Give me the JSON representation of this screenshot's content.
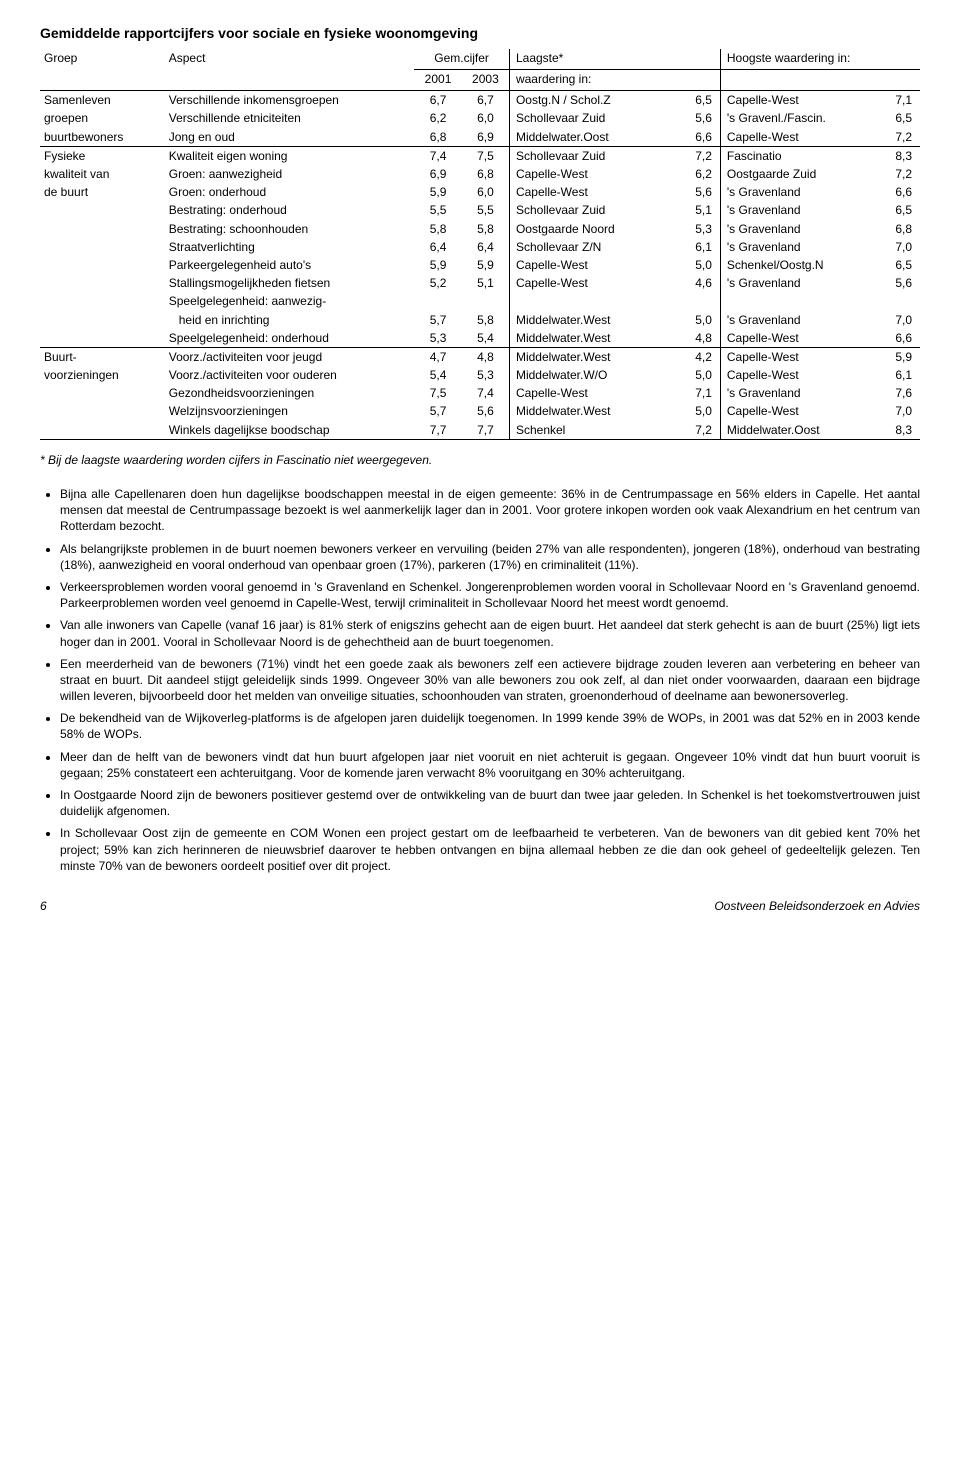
{
  "title": "Gemiddelde rapportcijfers voor sociale en fysieke woonomgeving",
  "header": {
    "groep": "Groep",
    "aspect": "Aspect",
    "gemcijfer": "Gem.cijfer",
    "y01": "2001",
    "y03": "2003",
    "laagste_top": "Laagste*",
    "laagste_bot": "waardering in:",
    "hoogste": "Hoogste waardering in:"
  },
  "sections": [
    {
      "groupLines": [
        "Samenleven",
        "groepen",
        "buurtbewoners"
      ],
      "rows": [
        {
          "aspect": "Verschillende inkomensgroepen",
          "c01": "6,7",
          "c03": "6,7",
          "lplace": "Oostg.N / Schol.Z",
          "lval": "6,5",
          "hplace": "Capelle-West",
          "hval": "7,1"
        },
        {
          "aspect": "Verschillende etniciteiten",
          "c01": "6,2",
          "c03": "6,0",
          "lplace": "Schollevaar Zuid",
          "lval": "5,6",
          "hplace": "'s Gravenl./Fascin.",
          "hval": "6,5"
        },
        {
          "aspect": "Jong en oud",
          "c01": "6,8",
          "c03": "6,9",
          "lplace": "Middelwater.Oost",
          "lval": "6,6",
          "hplace": "Capelle-West",
          "hval": "7,2"
        }
      ]
    },
    {
      "groupLines": [
        "Fysieke",
        "kwaliteit van",
        "de buurt"
      ],
      "rows": [
        {
          "aspect": "Kwaliteit eigen woning",
          "c01": "7,4",
          "c03": "7,5",
          "lplace": "Schollevaar Zuid",
          "lval": "7,2",
          "hplace": "Fascinatio",
          "hval": "8,3"
        },
        {
          "aspect": "Groen: aanwezigheid",
          "c01": "6,9",
          "c03": "6,8",
          "lplace": "Capelle-West",
          "lval": "6,2",
          "hplace": "Oostgaarde Zuid",
          "hval": "7,2"
        },
        {
          "aspect": "Groen: onderhoud",
          "c01": "5,9",
          "c03": "6,0",
          "lplace": "Capelle-West",
          "lval": "5,6",
          "hplace": "'s Gravenland",
          "hval": "6,6"
        },
        {
          "aspect": "Bestrating: onderhoud",
          "c01": "5,5",
          "c03": "5,5",
          "lplace": "Schollevaar Zuid",
          "lval": "5,1",
          "hplace": "'s Gravenland",
          "hval": "6,5"
        },
        {
          "aspect": "Bestrating: schoonhouden",
          "c01": "5,8",
          "c03": "5,8",
          "lplace": "Oostgaarde Noord",
          "lval": "5,3",
          "hplace": "'s Gravenland",
          "hval": "6,8"
        },
        {
          "aspect": "Straatverlichting",
          "c01": "6,4",
          "c03": "6,4",
          "lplace": "Schollevaar Z/N",
          "lval": "6,1",
          "hplace": "'s Gravenland",
          "hval": "7,0"
        },
        {
          "aspect": "Parkeergelegenheid auto's",
          "c01": "5,9",
          "c03": "5,9",
          "lplace": "Capelle-West",
          "lval": "5,0",
          "hplace": "Schenkel/Oostg.N",
          "hval": "6,5"
        },
        {
          "aspect": "Stallingsmogelijkheden fietsen",
          "c01": "5,2",
          "c03": "5,1",
          "lplace": "Capelle-West",
          "lval": "4,6",
          "hplace": "'s Gravenland",
          "hval": "5,6"
        },
        {
          "aspect": "Speelgelegenheid: aanwezig-",
          "c01": "",
          "c03": "",
          "lplace": "",
          "lval": "",
          "hplace": "",
          "hval": ""
        },
        {
          "aspect": "   heid en inrichting",
          "c01": "5,7",
          "c03": "5,8",
          "lplace": "Middelwater.West",
          "lval": "5,0",
          "hplace": "'s Gravenland",
          "hval": "7,0"
        },
        {
          "aspect": "Speelgelegenheid: onderhoud",
          "c01": "5,3",
          "c03": "5,4",
          "lplace": "Middelwater.West",
          "lval": "4,8",
          "hplace": "Capelle-West",
          "hval": "6,6"
        }
      ]
    },
    {
      "groupLines": [
        "Buurt-",
        "voorzieningen"
      ],
      "rows": [
        {
          "aspect": "Voorz./activiteiten voor jeugd",
          "c01": "4,7",
          "c03": "4,8",
          "lplace": "Middelwater.West",
          "lval": "4,2",
          "hplace": "Capelle-West",
          "hval": "5,9"
        },
        {
          "aspect": "Voorz./activiteiten voor ouderen",
          "c01": "5,4",
          "c03": "5,3",
          "lplace": "Middelwater.W/O",
          "lval": "5,0",
          "hplace": "Capelle-West",
          "hval": "6,1"
        },
        {
          "aspect": "Gezondheidsvoorzieningen",
          "c01": "7,5",
          "c03": "7,4",
          "lplace": "Capelle-West",
          "lval": "7,1",
          "hplace": "'s Gravenland",
          "hval": "7,6"
        },
        {
          "aspect": "Welzijnsvoorzieningen",
          "c01": "5,7",
          "c03": "5,6",
          "lplace": "Middelwater.West",
          "lval": "5,0",
          "hplace": "Capelle-West",
          "hval": "7,0"
        },
        {
          "aspect": "Winkels dagelijkse boodschap",
          "c01": "7,7",
          "c03": "7,7",
          "lplace": "Schenkel",
          "lval": "7,2",
          "hplace": "Middelwater.Oost",
          "hval": "8,3"
        }
      ]
    }
  ],
  "footnote": "* Bij de laagste waardering worden cijfers in Fascinatio niet weergegeven.",
  "bullets": [
    "Bijna alle Capellenaren doen hun dagelijkse boodschappen meestal in de eigen gemeente: 36% in de Centrumpassage en 56% elders in Capelle. Het aantal mensen dat meestal de Centrumpassage bezoekt is wel aanmerkelijk lager dan in 2001. Voor grotere inkopen worden ook vaak Alexandrium en het centrum van Rotterdam bezocht.",
    "Als belangrijkste problemen in de buurt noemen bewoners verkeer en vervuiling (beiden 27% van alle respondenten), jongeren (18%), onderhoud van bestrating (18%), aanwezigheid en vooral onderhoud van openbaar groen (17%), parkeren (17%) en criminaliteit (11%).",
    "Verkeersproblemen worden vooral genoemd in 's Gravenland en Schenkel. Jongerenproblemen worden vooral in Schollevaar Noord en 's Gravenland genoemd. Parkeerproblemen worden veel genoemd in Capelle-West, terwijl criminaliteit in Schollevaar Noord het meest wordt genoemd.",
    "Van alle inwoners van Capelle (vanaf 16 jaar) is 81% sterk of enigszins gehecht aan de eigen buurt. Het aandeel dat sterk gehecht is aan de buurt (25%) ligt iets hoger dan in 2001. Vooral in Schollevaar Noord is de gehechtheid aan de buurt toegenomen.",
    "Een meerderheid van de bewoners (71%) vindt het een goede zaak als bewoners zelf een actievere bijdrage zouden leveren aan verbetering en beheer van straat en buurt. Dit aandeel stijgt geleidelijk sinds 1999. Ongeveer 30% van alle bewoners zou ook zelf, al dan niet onder voorwaarden, daaraan een bijdrage willen leveren, bijvoorbeeld door het melden van onveilige situaties, schoonhouden van straten, groenonderhoud of deelname aan bewonersoverleg.",
    "De bekendheid van de Wijkoverleg-platforms is de afgelopen jaren duidelijk toegenomen. In 1999 kende 39% de WOPs, in 2001 was dat 52% en in 2003 kende 58% de WOPs.",
    "Meer dan de helft van de bewoners vindt dat hun buurt afgelopen jaar niet vooruit en niet achteruit is gegaan. Ongeveer 10% vindt dat hun buurt vooruit is gegaan; 25% constateert een achteruitgang. Voor de komende jaren verwacht 8% vooruitgang en 30% achteruitgang.",
    "In Oostgaarde Noord zijn de bewoners positiever gestemd over de ontwikkeling van de buurt dan twee jaar geleden. In Schenkel is het toekomstvertrouwen juist duidelijk afgenomen.",
    "In Schollevaar Oost zijn de gemeente en COM Wonen een project gestart om de leefbaarheid te verbeteren. Van de bewoners van dit gebied kent 70% het project; 59% kan zich herinneren de nieuwsbrief daarover te hebben ontvangen en bijna allemaal hebben ze die dan ook geheel of gedeeltelijk gelezen. Ten minste 70% van de bewoners oordeelt positief over dit project."
  ],
  "footer": {
    "page": "6",
    "right": "Oostveen Beleidsonderzoek en Advies"
  }
}
